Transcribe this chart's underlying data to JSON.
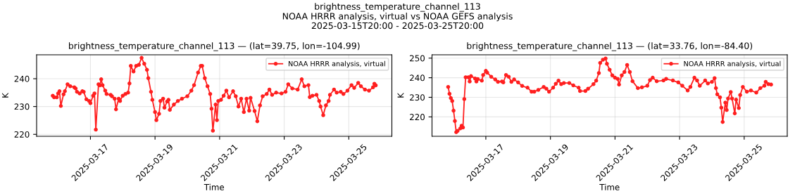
{
  "chart_data": [
    {
      "type": "line",
      "title": "brightness_temperature_channel_113 — (lat=39.75, lon=-104.99)",
      "xlabel": "Time",
      "ylabel": "K",
      "annotations": [
        "brightness_temperature_channel_113",
        "NOAA HRRR analysis, virtual vs NOAA GEFS analysis",
        "2025-03-15T20:00 - 2025-03-25T20:00"
      ],
      "xlim": [
        "2025-03-15T08:00",
        "2025-03-26T08:00"
      ],
      "xticks": [
        "2025-03-17",
        "2025-03-19",
        "2025-03-21",
        "2025-03-23",
        "2025-03-25"
      ],
      "ylim": [
        219.3,
        248.6
      ],
      "yticks": [
        220,
        230,
        240
      ],
      "grid": true,
      "legend": "top right",
      "marker": "circle",
      "line_style": "solid",
      "series": [
        {
          "name": "NOAA HRRR analysis, virtual",
          "color": "#ff1f1f",
          "x": [
            "2025-03-15T20:00",
            "2025-03-15T21:00",
            "2025-03-15T23:00",
            "2025-03-16T00:00",
            "2025-03-16T01:00",
            "2025-03-16T02:00",
            "2025-03-16T04:00",
            "2025-03-16T05:00",
            "2025-03-16T07:00",
            "2025-03-16T09:00",
            "2025-03-16T12:00",
            "2025-03-16T13:00",
            "2025-03-16T14:00",
            "2025-03-16T16:00",
            "2025-03-16T18:00",
            "2025-03-16T19:00",
            "2025-03-16T21:00",
            "2025-03-16T23:00",
            "2025-03-17T00:00",
            "2025-03-17T02:00",
            "2025-03-17T03:00",
            "2025-03-17T04:00",
            "2025-03-17T06:00",
            "2025-03-17T07:00",
            "2025-03-17T08:00",
            "2025-03-17T09:00",
            "2025-03-17T11:00",
            "2025-03-17T12:00",
            "2025-03-17T15:00",
            "2025-03-17T16:00",
            "2025-03-17T18:00",
            "2025-03-17T19:00",
            "2025-03-17T21:00",
            "2025-03-17T22:00",
            "2025-03-18T00:00",
            "2025-03-18T02:00",
            "2025-03-18T04:00",
            "2025-03-18T05:00",
            "2025-03-18T06:00",
            "2025-03-18T08:00",
            "2025-03-18T10:00",
            "2025-03-18T12:00",
            "2025-03-18T14:00",
            "2025-03-18T16:00",
            "2025-03-18T18:00",
            "2025-03-18T19:00",
            "2025-03-18T21:00",
            "2025-03-18T22:00",
            "2025-03-19T00:00",
            "2025-03-19T01:00",
            "2025-03-19T03:00",
            "2025-03-19T04:00",
            "2025-03-19T06:00",
            "2025-03-19T07:00",
            "2025-03-19T09:00",
            "2025-03-19T10:00",
            "2025-03-19T11:00",
            "2025-03-19T14:00",
            "2025-03-19T17:00",
            "2025-03-19T20:00",
            "2025-03-20T00:00",
            "2025-03-20T03:00",
            "2025-03-20T05:00",
            "2025-03-20T08:00",
            "2025-03-20T10:00",
            "2025-03-20T11:00",
            "2025-03-20T13:00",
            "2025-03-20T15:00",
            "2025-03-20T17:00",
            "2025-03-20T18:00",
            "2025-03-20T19:00",
            "2025-03-20T21:00",
            "2025-03-20T22:00",
            "2025-03-20T23:00",
            "2025-03-21T01:00",
            "2025-03-21T03:00",
            "2025-03-21T05:00",
            "2025-03-21T07:00",
            "2025-03-21T10:00",
            "2025-03-21T12:00",
            "2025-03-21T14:00",
            "2025-03-21T16:00",
            "2025-03-21T18:00",
            "2025-03-21T20:00",
            "2025-03-21T22:00",
            "2025-03-21T23:00",
            "2025-03-22T02:00",
            "2025-03-22T04:00",
            "2025-03-22T06:00",
            "2025-03-22T08:00",
            "2025-03-22T11:00",
            "2025-03-22T13:00",
            "2025-03-22T15:00",
            "2025-03-22T18:00",
            "2025-03-22T22:00",
            "2025-03-23T01:00",
            "2025-03-23T03:00",
            "2025-03-23T06:00",
            "2025-03-23T10:00",
            "2025-03-23T13:00",
            "2025-03-23T15:00",
            "2025-03-23T18:00",
            "2025-03-23T19:00",
            "2025-03-23T21:00",
            "2025-03-24T00:00",
            "2025-03-24T02:00",
            "2025-03-24T03:00",
            "2025-03-24T05:00",
            "2025-03-24T07:00",
            "2025-03-24T09:00",
            "2025-03-24T10:00",
            "2025-03-24T13:00",
            "2025-03-24T15:00",
            "2025-03-24T18:00",
            "2025-03-24T20:00",
            "2025-03-24T23:00",
            "2025-03-25T02:00",
            "2025-03-25T04:00",
            "2025-03-25T07:00",
            "2025-03-25T09:00",
            "2025-03-25T12:00",
            "2025-03-25T15:00",
            "2025-03-25T18:00",
            "2025-03-25T19:00",
            "2025-03-25T20:00"
          ],
          "values": [
            233.9,
            233.3,
            233.3,
            234.7,
            235.5,
            230.2,
            234.4,
            235.5,
            238,
            237.3,
            236.9,
            236.5,
            235.3,
            234.7,
            235.5,
            235.3,
            232.6,
            232,
            231.2,
            233.9,
            234.7,
            221.7,
            238,
            237.6,
            239.8,
            237.7,
            235.7,
            234.5,
            234.2,
            233.7,
            232.8,
            229,
            232.8,
            232,
            233.9,
            234.5,
            235,
            238.3,
            244.6,
            242.6,
            244.6,
            245,
            247.5,
            245.4,
            243.2,
            240.2,
            235.3,
            232.4,
            228,
            225.1,
            227.4,
            232,
            232.8,
            229.6,
            231.8,
            232.4,
            228.8,
            230.7,
            232,
            232.8,
            233.7,
            235.7,
            237.7,
            242.2,
            244.6,
            244.6,
            240.2,
            237.3,
            234.5,
            229.2,
            221.3,
            230.7,
            225.1,
            232,
            232.4,
            233.9,
            235.7,
            233.3,
            235.5,
            233.7,
            230,
            232.8,
            228,
            232.8,
            228.5,
            233.1,
            228.4,
            224.7,
            230.4,
            233.7,
            234.5,
            236.1,
            234.2,
            235,
            234.7,
            235.3,
            238,
            236.5,
            236.1,
            239.8,
            237.3,
            237.7,
            233.4,
            233.9,
            234.2,
            232,
            230,
            226.9,
            230.4,
            232,
            234.2,
            236.1,
            235,
            235.3,
            234.5,
            235.7,
            237.7,
            236.7,
            238.5,
            237.3,
            236.1,
            235.7,
            236.9,
            238.2,
            237.6
          ]
        }
      ]
    },
    {
      "type": "line",
      "title": "brightness_temperature_channel_113 — (lat=33.76, lon=-84.40)",
      "xlabel": "Time",
      "ylabel": "K",
      "xlim": [
        "2025-03-15T08:00",
        "2025-03-26T08:00"
      ],
      "xticks": [
        "2025-03-17",
        "2025-03-19",
        "2025-03-21",
        "2025-03-23",
        "2025-03-25"
      ],
      "ylim": [
        210.1,
        251.7
      ],
      "yticks": [
        220,
        230,
        240,
        250
      ],
      "grid": true,
      "legend": "top right",
      "marker": "circle",
      "line_style": "solid",
      "series": [
        {
          "name": "NOAA HRRR analysis, virtual",
          "color": "#ff1f1f",
          "x": [
            "2025-03-15T20:00",
            "2025-03-15T21:00",
            "2025-03-15T22:00",
            "2025-03-15T23:00",
            "2025-03-16T00:00",
            "2025-03-16T01:00",
            "2025-03-16T02:00",
            "2025-03-16T03:00",
            "2025-03-16T05:00",
            "2025-03-16T06:00",
            "2025-03-16T07:00",
            "2025-03-16T08:00",
            "2025-03-16T09:00",
            "2025-03-16T11:00",
            "2025-03-16T12:00",
            "2025-03-16T13:00",
            "2025-03-16T16:00",
            "2025-03-16T17:00",
            "2025-03-16T18:00",
            "2025-03-16T21:00",
            "2025-03-16T22:00",
            "2025-03-17T00:00",
            "2025-03-17T01:00",
            "2025-03-17T04:00",
            "2025-03-17T07:00",
            "2025-03-17T09:00",
            "2025-03-17T12:00",
            "2025-03-17T13:00",
            "2025-03-17T15:00",
            "2025-03-17T17:00",
            "2025-03-17T19:00",
            "2025-03-17T21:00",
            "2025-03-18T00:00",
            "2025-03-18T03:00",
            "2025-03-18T07:00",
            "2025-03-18T10:00",
            "2025-03-18T12:00",
            "2025-03-18T15:00",
            "2025-03-18T19:00",
            "2025-03-18T21:00",
            "2025-03-18T23:00",
            "2025-03-19T02:00",
            "2025-03-19T04:00",
            "2025-03-19T06:00",
            "2025-03-19T08:00",
            "2025-03-19T10:00",
            "2025-03-19T14:00",
            "2025-03-19T17:00",
            "2025-03-19T21:00",
            "2025-03-19T22:00",
            "2025-03-20T02:00",
            "2025-03-20T04:00",
            "2025-03-20T08:00",
            "2025-03-20T10:00",
            "2025-03-20T12:00",
            "2025-03-20T13:00",
            "2025-03-20T15:00",
            "2025-03-20T17:00",
            "2025-03-20T18:00",
            "2025-03-20T20:00",
            "2025-03-20T22:00",
            "2025-03-21T00:00",
            "2025-03-21T02:00",
            "2025-03-21T03:00",
            "2025-03-21T05:00",
            "2025-03-21T07:00",
            "2025-03-21T09:00",
            "2025-03-21T11:00",
            "2025-03-21T13:00",
            "2025-03-21T17:00",
            "2025-03-21T20:00",
            "2025-03-22T00:00",
            "2025-03-22T02:00",
            "2025-03-22T04:00",
            "2025-03-22T07:00",
            "2025-03-22T12:00",
            "2025-03-22T14:00",
            "2025-03-22T19:00",
            "2025-03-22T23:00",
            "2025-03-23T02:00",
            "2025-03-23T06:00",
            "2025-03-23T08:00",
            "2025-03-23T11:00",
            "2025-03-23T13:00",
            "2025-03-23T15:00",
            "2025-03-23T19:00",
            "2025-03-23T21:00",
            "2025-03-24T00:00",
            "2025-03-24T02:00",
            "2025-03-24T03:00",
            "2025-03-24T04:00",
            "2025-03-24T06:00",
            "2025-03-24T07:00",
            "2025-03-24T08:00",
            "2025-03-24T10:00",
            "2025-03-24T11:00",
            "2025-03-24T12:00",
            "2025-03-24T14:00",
            "2025-03-24T15:00",
            "2025-03-24T17:00",
            "2025-03-24T18:00",
            "2025-03-24T20:00",
            "2025-03-24T21:00",
            "2025-03-24T23:00",
            "2025-03-25T02:00",
            "2025-03-25T05:00",
            "2025-03-25T09:00",
            "2025-03-25T12:00",
            "2025-03-25T15:00",
            "2025-03-25T16:00",
            "2025-03-25T18:00",
            "2025-03-25T20:00"
          ],
          "values": [
            235.3,
            231.8,
            229.6,
            228.1,
            223.2,
            217.9,
            212.2,
            212.9,
            214.1,
            215.5,
            214.6,
            229.1,
            240.2,
            240.2,
            238.1,
            240.8,
            239.6,
            238.1,
            239.3,
            238.5,
            241.4,
            243.5,
            242.6,
            240.5,
            239.1,
            237.9,
            238.1,
            237.6,
            241.4,
            240.5,
            237.9,
            239.1,
            237.6,
            235.8,
            234.9,
            232.9,
            232.9,
            233.8,
            235.3,
            234.4,
            232.9,
            234.9,
            236.9,
            238.5,
            236.7,
            237.3,
            237.3,
            236.1,
            234.9,
            233.2,
            233.2,
            234.4,
            236.7,
            238.5,
            242.4,
            247.6,
            249.2,
            249.8,
            247.1,
            244.1,
            241.2,
            240,
            239.4,
            236.5,
            241.2,
            242.9,
            246.5,
            242.9,
            238.2,
            234.7,
            235.1,
            235.9,
            238.8,
            240,
            238.2,
            238.6,
            239.4,
            238.6,
            237.6,
            235.9,
            233.5,
            235.3,
            240,
            238.6,
            235.9,
            238.6,
            237.1,
            237.9,
            239.8,
            234.7,
            231.5,
            230,
            224.7,
            217.4,
            227.3,
            223.5,
            229.4,
            232.7,
            229.4,
            221.8,
            228.8,
            224.5,
            231.2,
            235.3,
            232.9,
            233.5,
            232.4,
            234.7,
            235.9,
            237.9,
            236.7,
            236.5
          ]
        }
      ]
    }
  ]
}
